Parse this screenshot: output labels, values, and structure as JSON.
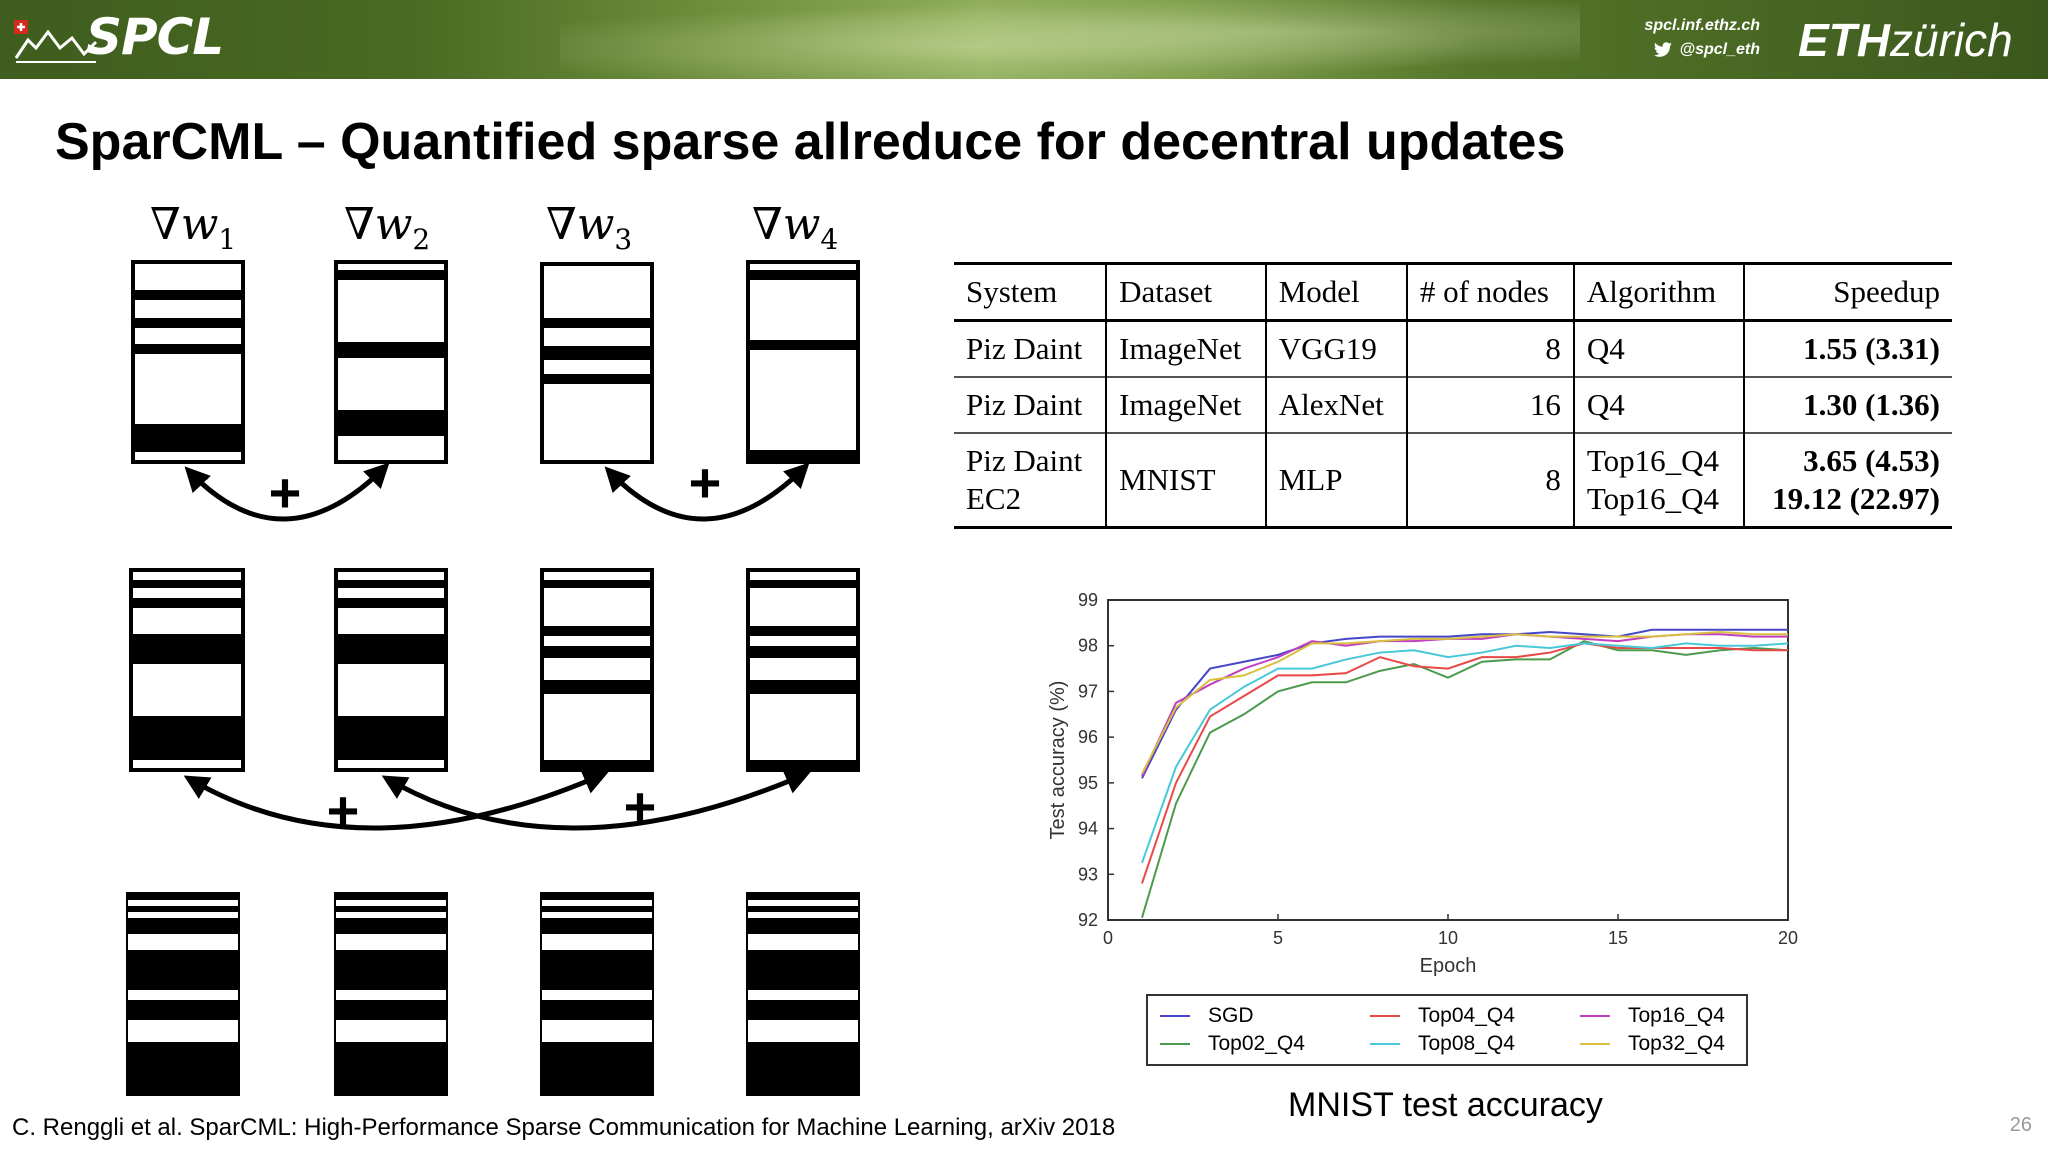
{
  "banner": {
    "logo_text": "SPCL",
    "site_url": "spcl.inf.ethz.ch",
    "twitter_handle": "@spcl_eth",
    "eth_logo_bold": "ETH",
    "eth_logo_light": "zürich"
  },
  "slide": {
    "title": "SparCML – Quantified sparse allreduce for decentral updates",
    "citation": "C. Renggli et al. SparCML: High-Performance Sparse Communication for Machine Learning, arXiv 2018",
    "page_number": "26",
    "caption": "MNIST test accuracy"
  },
  "diagram": {
    "gradient_symbol": "∇w",
    "labels": [
      {
        "base": "∇w",
        "sub": "1"
      },
      {
        "base": "∇w",
        "sub": "2"
      },
      {
        "base": "∇w",
        "sub": "3"
      },
      {
        "base": "∇w",
        "sub": "4"
      }
    ],
    "plus_sign": "+"
  },
  "table": {
    "headers": [
      "System",
      "Dataset",
      "Model",
      "# of nodes",
      "Algorithm",
      "Speedup"
    ],
    "rows": [
      {
        "system": "Piz Daint",
        "dataset": "ImageNet",
        "model": "VGG19",
        "nodes": "8",
        "algorithm": "Q4",
        "speedup": "1.55 (3.31)"
      },
      {
        "system": "Piz Daint",
        "dataset": "ImageNet",
        "model": "AlexNet",
        "nodes": "16",
        "algorithm": "Q4",
        "speedup": "1.30 (1.36)"
      },
      {
        "system": "Piz Daint",
        "system2": "EC2",
        "dataset": "MNIST",
        "model": "MLP",
        "nodes": "8",
        "algorithm": "Top16_Q4",
        "algorithm2": "Top16_Q4",
        "speedup": "3.65 (4.53)",
        "speedup2": "19.12 (22.97)"
      }
    ]
  },
  "chart_data": {
    "type": "line",
    "title": "",
    "xlabel": "Epoch",
    "ylabel": "Test accuracy (%)",
    "xlim": [
      0,
      20
    ],
    "ylim": [
      92,
      99
    ],
    "xticks": [
      0,
      5,
      10,
      15,
      20
    ],
    "yticks": [
      92,
      93,
      94,
      95,
      96,
      97,
      98,
      99
    ],
    "grid": false,
    "legend_position": "below",
    "x": [
      1,
      2,
      3,
      4,
      5,
      6,
      7,
      8,
      9,
      10,
      11,
      12,
      13,
      14,
      15,
      16,
      17,
      18,
      19,
      20
    ],
    "series": [
      {
        "name": "SGD",
        "color": "#4646c8",
        "values": [
          95.1,
          96.6,
          97.5,
          97.65,
          97.8,
          98.05,
          98.15,
          98.2,
          98.2,
          98.2,
          98.25,
          98.25,
          98.3,
          98.25,
          98.2,
          98.35,
          98.35,
          98.35,
          98.35,
          98.35
        ]
      },
      {
        "name": "Top02_Q4",
        "color": "#4c9a4c",
        "values": [
          92.05,
          94.55,
          96.1,
          96.5,
          97.0,
          97.2,
          97.2,
          97.45,
          97.6,
          97.3,
          97.65,
          97.7,
          97.7,
          98.1,
          97.9,
          97.9,
          97.8,
          97.9,
          97.95,
          97.9
        ]
      },
      {
        "name": "Top04_Q4",
        "color": "#e84848",
        "values": [
          92.8,
          95.0,
          96.45,
          96.9,
          97.35,
          97.35,
          97.4,
          97.75,
          97.55,
          97.5,
          97.75,
          97.75,
          97.85,
          98.05,
          97.95,
          97.95,
          97.95,
          97.95,
          97.9,
          97.9
        ]
      },
      {
        "name": "Top08_Q4",
        "color": "#48c8d8",
        "values": [
          93.25,
          95.35,
          96.6,
          97.1,
          97.5,
          97.5,
          97.7,
          97.85,
          97.9,
          97.75,
          97.85,
          98.0,
          97.95,
          98.05,
          98.0,
          97.95,
          98.05,
          98.0,
          98.0,
          98.05
        ]
      },
      {
        "name": "Top16_Q4",
        "color": "#c040c0",
        "values": [
          95.15,
          96.75,
          97.15,
          97.5,
          97.75,
          98.1,
          98.0,
          98.1,
          98.1,
          98.15,
          98.15,
          98.25,
          98.2,
          98.15,
          98.1,
          98.2,
          98.25,
          98.25,
          98.2,
          98.2
        ]
      },
      {
        "name": "Top32_Q4",
        "color": "#d8c040",
        "values": [
          95.2,
          96.65,
          97.25,
          97.35,
          97.65,
          98.05,
          98.05,
          98.1,
          98.15,
          98.15,
          98.2,
          98.25,
          98.2,
          98.2,
          98.2,
          98.2,
          98.25,
          98.3,
          98.25,
          98.25
        ]
      }
    ]
  }
}
